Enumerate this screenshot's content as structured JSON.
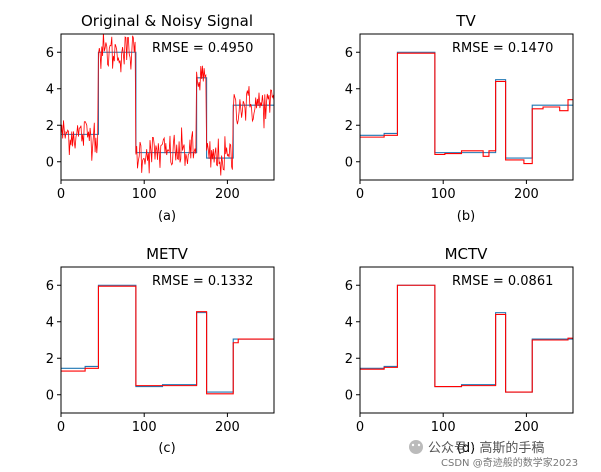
{
  "chart_data": [
    {
      "type": "line",
      "id": "a",
      "title": "Original & Noisy Signal",
      "annotation": "RMSE = 0.4950",
      "sublabel": "(a)",
      "xlim": [
        0,
        256
      ],
      "ylim": [
        -1,
        7
      ],
      "xticks": [
        0,
        100,
        200
      ],
      "yticks": [
        0,
        2,
        4,
        6
      ],
      "series": [
        {
          "name": "original",
          "color": "#1f77b4",
          "steps": [
            [
              0,
              1.5
            ],
            [
              45,
              6
            ],
            [
              90,
              0.5
            ],
            [
              163,
              4.6
            ],
            [
              175,
              0.2
            ],
            [
              207,
              3.1
            ],
            [
              256,
              3.1
            ]
          ]
        },
        {
          "name": "noisy",
          "color": "#ff0000",
          "noise": 0.55,
          "steps": [
            [
              0,
              1.5
            ],
            [
              45,
              6
            ],
            [
              90,
              0.5
            ],
            [
              163,
              4.6
            ],
            [
              175,
              0.2
            ],
            [
              207,
              3.1
            ],
            [
              256,
              3.1
            ]
          ]
        }
      ]
    },
    {
      "type": "line",
      "id": "b",
      "title": "TV",
      "annotation": "RMSE = 0.1470",
      "sublabel": "(b)",
      "xlim": [
        0,
        256
      ],
      "ylim": [
        -1,
        7
      ],
      "xticks": [
        0,
        100,
        200
      ],
      "yticks": [
        0,
        2,
        4,
        6
      ],
      "series": [
        {
          "name": "original",
          "color": "#1f77b4",
          "steps": [
            [
              0,
              1.45
            ],
            [
              29,
              1.55
            ],
            [
              45,
              6
            ],
            [
              90,
              0.5
            ],
            [
              163,
              4.5
            ],
            [
              175,
              0.2
            ],
            [
              207,
              3.1
            ],
            [
              256,
              3.1
            ]
          ]
        },
        {
          "name": "estimate",
          "color": "#ff0000",
          "steps": [
            [
              0,
              1.35
            ],
            [
              29,
              1.45
            ],
            [
              45,
              5.95
            ],
            [
              90,
              0.4
            ],
            [
              102,
              0.45
            ],
            [
              122,
              0.6
            ],
            [
              148,
              0.3
            ],
            [
              155,
              0.6
            ],
            [
              163,
              4.4
            ],
            [
              175,
              0.1
            ],
            [
              197,
              -0.1
            ],
            [
              207,
              2.9
            ],
            [
              220,
              3.0
            ],
            [
              240,
              2.8
            ],
            [
              250,
              3.4
            ],
            [
              256,
              3.4
            ]
          ]
        }
      ]
    },
    {
      "type": "line",
      "id": "c",
      "title": "METV",
      "annotation": "RMSE = 0.1332",
      "sublabel": "(c)",
      "xlim": [
        0,
        256
      ],
      "ylim": [
        -1,
        7
      ],
      "xticks": [
        0,
        100,
        200
      ],
      "yticks": [
        0,
        2,
        4,
        6
      ],
      "series": [
        {
          "name": "original",
          "color": "#1f77b4",
          "steps": [
            [
              0,
              1.45
            ],
            [
              29,
              1.55
            ],
            [
              45,
              6
            ],
            [
              90,
              0.45
            ],
            [
              122,
              0.55
            ],
            [
              163,
              4.5
            ],
            [
              175,
              0.15
            ],
            [
              207,
              3.05
            ],
            [
              256,
              3.05
            ]
          ]
        },
        {
          "name": "estimate",
          "color": "#ff0000",
          "steps": [
            [
              0,
              1.3
            ],
            [
              29,
              1.45
            ],
            [
              45,
              5.95
            ],
            [
              90,
              0.5
            ],
            [
              122,
              0.5
            ],
            [
              163,
              4.55
            ],
            [
              175,
              0.05
            ],
            [
              207,
              2.85
            ],
            [
              213,
              3.05
            ],
            [
              256,
              3.05
            ]
          ]
        }
      ]
    },
    {
      "type": "line",
      "id": "d",
      "title": "MCTV",
      "annotation": "RMSE = 0.0861",
      "sublabel": "(d)",
      "xlim": [
        0,
        256
      ],
      "ylim": [
        -1,
        7
      ],
      "xticks": [
        0,
        100,
        200
      ],
      "yticks": [
        0,
        2,
        4,
        6
      ],
      "series": [
        {
          "name": "original",
          "color": "#1f77b4",
          "steps": [
            [
              0,
              1.45
            ],
            [
              29,
              1.55
            ],
            [
              45,
              6
            ],
            [
              90,
              0.45
            ],
            [
              122,
              0.55
            ],
            [
              163,
              4.5
            ],
            [
              175,
              0.15
            ],
            [
              207,
              3.05
            ],
            [
              256,
              3.05
            ]
          ]
        },
        {
          "name": "estimate",
          "color": "#ff0000",
          "steps": [
            [
              0,
              1.4
            ],
            [
              29,
              1.5
            ],
            [
              45,
              6
            ],
            [
              90,
              0.45
            ],
            [
              122,
              0.5
            ],
            [
              163,
              4.4
            ],
            [
              175,
              0.15
            ],
            [
              207,
              3.0
            ],
            [
              250,
              3.1
            ],
            [
              256,
              3.1
            ]
          ]
        }
      ]
    }
  ],
  "watermark": {
    "wechat": "公众号 · 高斯的手稿",
    "csdn": "CSDN @奇迹般的数学家2023"
  },
  "colors": {
    "original": "#1f77b4",
    "estimate": "#ff0000"
  }
}
